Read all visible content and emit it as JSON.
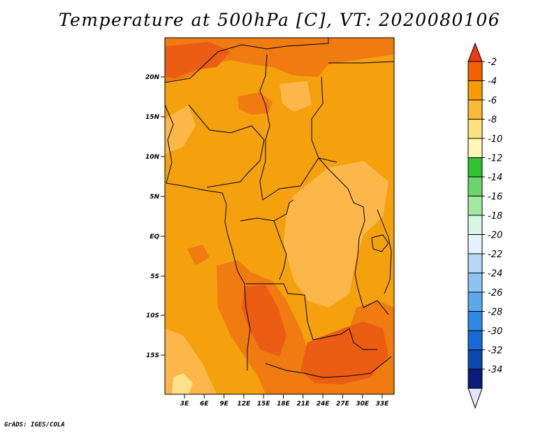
{
  "title": "Temperature at 500hPa [C], VT: 2020080106",
  "credit": "GrADS: IGES/COLA",
  "lat_axis": [
    "20N",
    "15N",
    "10N",
    "5N",
    "EQ",
    "5S",
    "10S",
    "15S"
  ],
  "lon_axis": [
    "3E",
    "6E",
    "9E",
    "12E",
    "15E",
    "18E",
    "21E",
    "24E",
    "27E",
    "30E",
    "33E"
  ],
  "colorbar": {
    "labels": [
      "-2",
      "-4",
      "-6",
      "-8",
      "-10",
      "-12",
      "-14",
      "-16",
      "-18",
      "-20",
      "-22",
      "-24",
      "-26",
      "-28",
      "-30",
      "-32",
      "-34"
    ],
    "colors": [
      "#ee3a10",
      "#f46200",
      "#f89a00",
      "#fbb93a",
      "#fde27e",
      "#fff6b8",
      "#30c030",
      "#6ad66a",
      "#a2e9a2",
      "#d8f7e6",
      "#e6f2ff",
      "#b5d8f6",
      "#8ec4f4",
      "#5ba8ee",
      "#2f88e8",
      "#176ad6",
      "#0d48b0",
      "#0a1c7a",
      "#e4e4fb"
    ]
  },
  "map_fill_colors": {
    "base": "#f4a10d",
    "warm": "#f07b10",
    "hot": "#ea5d12",
    "cool": "#fbb74a",
    "pale": "#fde28a"
  }
}
